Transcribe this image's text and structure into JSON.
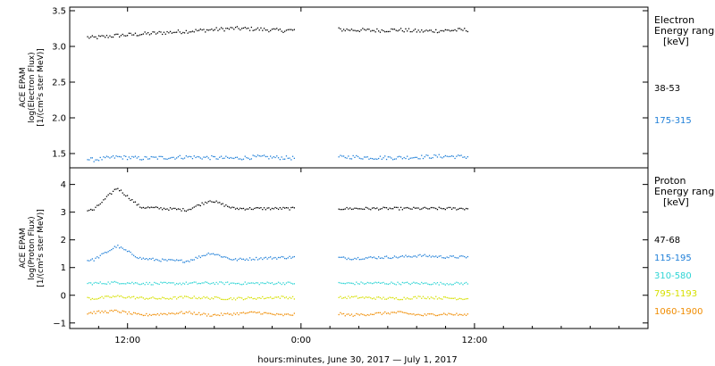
{
  "chart_data": {
    "type": "scatter",
    "xlabel": "hours:minutes, June 30, 2017 — July  1, 2017",
    "x_tick_labels": [
      "12:00",
      "0:00",
      "12:00"
    ],
    "x_ticks_hours": [
      12,
      24,
      36
    ],
    "xlim_hours": [
      8,
      48
    ],
    "data_gap_hours": [
      23.5,
      26.5
    ],
    "data_end_hours": 35.5,
    "panels": [
      {
        "id": "electron",
        "ylabel_lines": [
          "ACE EPAM",
          "log(Electron Flux)",
          "[1/(cm²s ster MeV)]"
        ],
        "ylim": [
          1.3,
          3.55
        ],
        "yticks": [
          1.5,
          2.0,
          2.5,
          3.0,
          3.5
        ],
        "ytick_labels": [
          "1.5",
          "2.0",
          "2.5",
          "3.0",
          "3.5"
        ],
        "legend_title": [
          "Electron",
          "Energy range",
          "[keV]"
        ],
        "series": [
          {
            "name": "38-53",
            "color": "#000000",
            "values": [
              3.15,
              3.13,
              3.16,
              3.18,
              3.2,
              3.22,
              3.24,
              3.26,
              3.25,
              3.23,
              3.24,
              3.25,
              3.24,
              3.23,
              3.24,
              3.22,
              3.23,
              3.24
            ]
          },
          {
            "name": "175-315",
            "color": "#1f7fd8",
            "values": [
              1.45,
              1.42,
              1.46,
              1.44,
              1.45,
              1.46,
              1.45,
              1.44,
              1.46,
              1.45,
              1.44,
              1.45,
              1.46,
              1.45,
              1.45,
              1.46,
              1.47,
              1.46
            ]
          }
        ]
      },
      {
        "id": "proton",
        "ylabel_lines": [
          "ACE EPAM",
          "log(Proton Flux)",
          "[1/(cm²s ster MeV)]"
        ],
        "ylim": [
          -1.2,
          4.6
        ],
        "yticks": [
          -1,
          0,
          1,
          2,
          3,
          4
        ],
        "ytick_labels": [
          "−1",
          "0",
          "1",
          "2",
          "3",
          "4"
        ],
        "legend_title": [
          "Proton",
          "Energy range",
          "[keV]"
        ],
        "series": [
          {
            "name": "47-68",
            "color": "#000000",
            "values": [
              3.05,
              3.1,
              3.9,
              3.2,
              3.15,
              3.1,
              3.45,
              3.15,
              3.15,
              3.15,
              3.15,
              3.15,
              3.15,
              3.15,
              3.15,
              3.15,
              3.15,
              3.15
            ]
          },
          {
            "name": "115-195",
            "color": "#1f7fd8",
            "values": [
              1.25,
              1.3,
              1.8,
              1.35,
              1.28,
              1.25,
              1.55,
              1.3,
              1.35,
              1.38,
              1.4,
              1.4,
              1.35,
              1.38,
              1.4,
              1.45,
              1.4,
              1.4
            ]
          },
          {
            "name": "310-580",
            "color": "#2dd4d4",
            "values": [
              0.45,
              0.45,
              0.48,
              0.45,
              0.44,
              0.45,
              0.46,
              0.45,
              0.45,
              0.46,
              0.45,
              0.44,
              0.45,
              0.46,
              0.45,
              0.45,
              0.44,
              0.45
            ]
          },
          {
            "name": "795-1193",
            "color": "#d6e000",
            "values": [
              -0.05,
              -0.1,
              -0.02,
              -0.08,
              -0.1,
              -0.05,
              -0.08,
              -0.1,
              -0.08,
              -0.05,
              -0.08,
              -0.1,
              -0.05,
              -0.08,
              -0.1,
              -0.05,
              -0.08,
              -0.1
            ]
          },
          {
            "name": "1060-1900",
            "color": "#f08c00",
            "values": [
              -0.7,
              -0.6,
              -0.55,
              -0.7,
              -0.65,
              -0.6,
              -0.7,
              -0.65,
              -0.6,
              -0.7,
              -0.65,
              -0.6,
              -0.7,
              -0.65,
              -0.6,
              -0.7,
              -0.65,
              -0.7
            ]
          }
        ]
      }
    ]
  }
}
